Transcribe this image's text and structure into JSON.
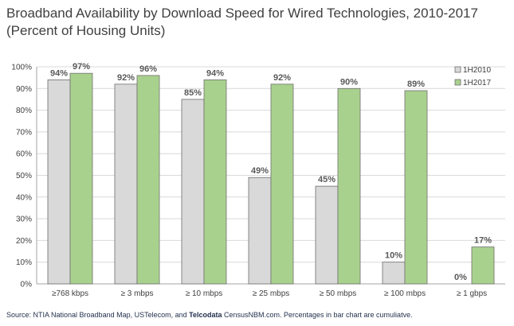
{
  "page": {
    "title_line1": "Broadband Availability by Download Speed for Wired Technologies, 2010-2017",
    "title_line2": "(Percent of Housing Units)",
    "source_prefix": "Source: NTIA National Broadband Map, USTelecom, and ",
    "source_bold": "Telcodata",
    "source_suffix": " CensusNBM.com. Percentages in bar chart are cumuliatve."
  },
  "chart_data": {
    "type": "bar",
    "title": "Broadband Availability by Download Speed for Wired Technologies, 2010-2017 (Percent of Housing Units)",
    "categories": [
      "≥768 kbps",
      "≥ 3 mbps",
      "≥ 10 mbps",
      "≥ 25 mbps",
      "≥ 50 mbps",
      "≥ 100 mbps",
      "≥ 1 gbps"
    ],
    "series": [
      {
        "name": "1H2010",
        "values": [
          94,
          92,
          85,
          49,
          45,
          10,
          0
        ],
        "labels": [
          "94%",
          "92%",
          "85%",
          "49%",
          "45%",
          "10%",
          "0%"
        ],
        "color": "#d9d9d9"
      },
      {
        "name": "1H2017",
        "values": [
          97,
          96,
          94,
          92,
          90,
          89,
          17
        ],
        "labels": [
          "97%",
          "96%",
          "94%",
          "92%",
          "90%",
          "89%",
          "17%"
        ],
        "color": "#a9d18e"
      }
    ],
    "ylim": [
      0,
      100
    ],
    "yticks": [
      "0%",
      "10%",
      "20%",
      "30%",
      "40%",
      "50%",
      "60%",
      "70%",
      "80%",
      "90%",
      "100%"
    ],
    "grid": true,
    "legend": "top-right",
    "xlabel": "",
    "ylabel": ""
  }
}
